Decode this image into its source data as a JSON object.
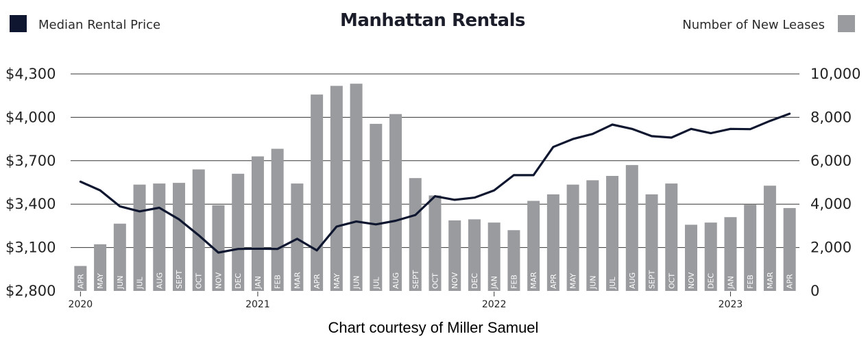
{
  "chart_data": {
    "type": "bar+line",
    "title": "Manhattan Rentals",
    "legend": {
      "left": {
        "label": "Median Rental Price",
        "color": "#0f1730"
      },
      "right": {
        "label": "Number of New Leases",
        "color": "#9a9b9e"
      }
    },
    "categories": [
      "APR",
      "MAY",
      "JUN",
      "JUL",
      "AUG",
      "SEPT",
      "OCT",
      "NOV",
      "DEC",
      "JAN",
      "FEB",
      "MAR",
      "APR",
      "MAY",
      "JUN",
      "JUL",
      "AUG",
      "SEPT",
      "OCT",
      "NOV",
      "DEC",
      "JAN",
      "FEB",
      "MAR",
      "APR",
      "MAY",
      "JUN",
      "JUL",
      "AUG",
      "SEPT",
      "OCT",
      "NOV",
      "DEC",
      "JAN",
      "FEB",
      "MAR",
      "APR"
    ],
    "years": [
      {
        "label": "2020",
        "index": 0
      },
      {
        "label": "2021",
        "index": 9
      },
      {
        "label": "2022",
        "index": 21
      },
      {
        "label": "2023",
        "index": 33
      }
    ],
    "series": [
      {
        "name": "Number of New Leases",
        "type": "bar",
        "axis": "right",
        "color": "#9a9b9e",
        "values": [
          1150,
          2150,
          3100,
          4900,
          4950,
          4980,
          5600,
          3950,
          5400,
          6200,
          6550,
          4950,
          9050,
          9450,
          9550,
          7700,
          8150,
          5200,
          4400,
          3250,
          3300,
          3150,
          2800,
          4150,
          4450,
          4900,
          5100,
          5300,
          5800,
          4450,
          4950,
          3050,
          3150,
          3400,
          3970,
          4850,
          3820
        ]
      },
      {
        "name": "Median Rental Price",
        "type": "line",
        "axis": "left",
        "color": "#0f1730",
        "values": [
          3555,
          3495,
          3385,
          3350,
          3375,
          3295,
          3185,
          3065,
          3090,
          3092,
          3090,
          3160,
          3080,
          3245,
          3280,
          3260,
          3285,
          3325,
          3455,
          3430,
          3445,
          3495,
          3600,
          3600,
          3795,
          3850,
          3885,
          3950,
          3920,
          3870,
          3860,
          3920,
          3890,
          3920,
          3918,
          3975,
          4025
        ]
      }
    ],
    "y_left": {
      "min": 2800,
      "max": 4300,
      "ticks": [
        "$4,300",
        "$4,000",
        "$3,700",
        "$3,400",
        "$3,100",
        "$2,800"
      ],
      "tick_values": [
        4300,
        4000,
        3700,
        3400,
        3100,
        2800
      ]
    },
    "y_right": {
      "min": 0,
      "max": 10000,
      "ticks": [
        "10,000",
        "8,000",
        "6,000",
        "4,000",
        "2,000",
        "0"
      ],
      "tick_values": [
        10000,
        8000,
        6000,
        4000,
        2000,
        0
      ]
    },
    "grid": true
  },
  "caption": "Chart courtesy of Miller Samuel"
}
